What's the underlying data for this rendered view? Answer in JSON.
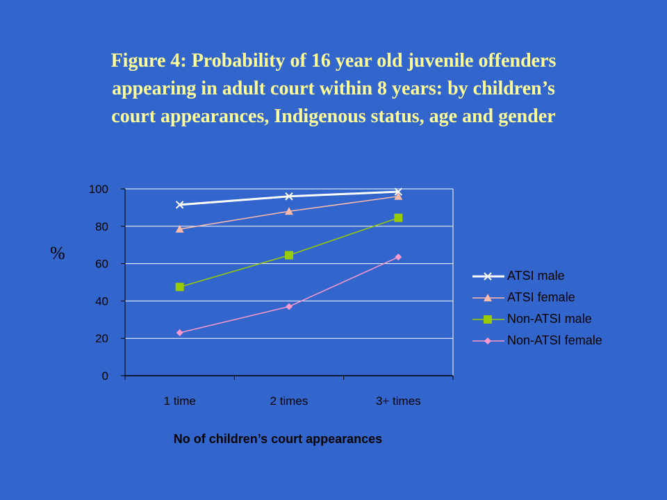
{
  "title_lines": [
    "Figure 4: Probability of 16 year old juvenile offenders",
    "appearing in adult court within 8 years: by children’s",
    "court appearances, Indigenous status, age and gender"
  ],
  "chart_data": {
    "type": "line",
    "categories": [
      "1 time",
      "2 times",
      "3+ times"
    ],
    "ylabel": "%",
    "xlabel": "No of children’s court appearances",
    "ylim": [
      0,
      100
    ],
    "yticks": [
      0,
      20,
      40,
      60,
      80,
      100
    ],
    "grid": true,
    "legend": "right",
    "series": [
      {
        "name": "ATSI male",
        "values": [
          91.5,
          96,
          98.5
        ],
        "color": "#ffffff",
        "marker": "x"
      },
      {
        "name": "ATSI female",
        "values": [
          78.5,
          88,
          96
        ],
        "color": "#ffbbaa",
        "marker": "triangle"
      },
      {
        "name": "Non-ATSI male",
        "values": [
          47.5,
          64.5,
          84.5
        ],
        "color": "#99cc00",
        "marker": "square"
      },
      {
        "name": "Non-ATSI female",
        "values": [
          23,
          37,
          63.5
        ],
        "color": "#ff99cc",
        "marker": "diamond"
      }
    ]
  }
}
